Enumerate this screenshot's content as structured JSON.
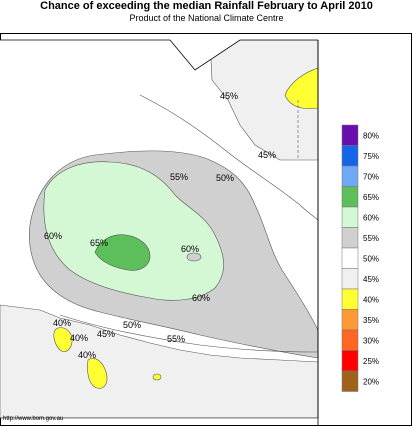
{
  "title": "Chance of exceeding the median Rainfall February to April 2010",
  "subtitle": "Product of the National Climate Centre",
  "credit": "http://www.bom.gov.au",
  "map_labels": {
    "p45_north": "45%",
    "p45_kimberley": "45%",
    "p55_north": "55%",
    "p50_north": "50%",
    "p60_west": "60%",
    "p65": "65%",
    "p60_centre": "60%",
    "p60_south": "60%",
    "p40_sw": "40%",
    "p40_sw2": "40%",
    "p40_sw3": "40%",
    "p45_south": "45%",
    "p50_south": "50%",
    "p55_south": "55%"
  },
  "legend": [
    {
      "label": "80%",
      "color": "#6a0dad"
    },
    {
      "label": "75%",
      "color": "#1565e8"
    },
    {
      "label": "70%",
      "color": "#6fa8f5"
    },
    {
      "label": "65%",
      "color": "#5cbf5c"
    },
    {
      "label": "60%",
      "color": "#d4f7d4"
    },
    {
      "label": "55%",
      "color": "#d0d0d0"
    },
    {
      "label": "50%",
      "color": "#ffffff"
    },
    {
      "label": "45%",
      "color": "#f0f0f0"
    },
    {
      "label": "40%",
      "color": "#ffff33"
    },
    {
      "label": "35%",
      "color": "#ff9933"
    },
    {
      "label": "30%",
      "color": "#ff6622"
    },
    {
      "label": "25%",
      "color": "#ff0000"
    },
    {
      "label": "20%",
      "color": "#a0621a"
    }
  ]
}
